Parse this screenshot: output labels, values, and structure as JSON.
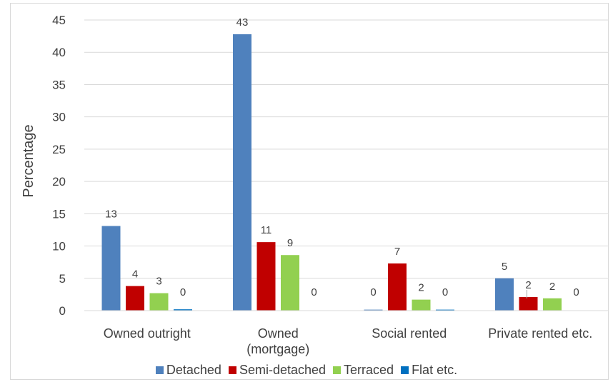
{
  "chart_data": {
    "type": "bar",
    "title": "",
    "xlabel": "",
    "ylabel": "Percentage",
    "ylim": [
      0,
      45
    ],
    "yticks": [
      0,
      5,
      10,
      15,
      20,
      25,
      30,
      35,
      40,
      45
    ],
    "grid": true,
    "legend_position": "bottom",
    "categories": [
      [
        "Owned outright"
      ],
      [
        "Owned",
        "(mortgage)"
      ],
      [
        "Social rented"
      ],
      [
        "Private rented etc."
      ]
    ],
    "series": [
      {
        "name": "Detached",
        "color": "#4f81bd",
        "values": [
          13.1,
          42.8,
          0.15,
          5.0
        ],
        "labels": [
          "13",
          "43",
          "0",
          "5"
        ]
      },
      {
        "name": "Semi-detached",
        "color": "#c00000",
        "values": [
          3.8,
          10.6,
          7.3,
          2.1
        ],
        "labels": [
          "4",
          "11",
          "7",
          "2"
        ]
      },
      {
        "name": "Terraced",
        "color": "#92d050",
        "values": [
          2.7,
          8.6,
          1.7,
          1.9
        ],
        "labels": [
          "3",
          "9",
          "2",
          "2"
        ]
      },
      {
        "name": "Flat etc.",
        "color": "#0070c0",
        "values": [
          0.2,
          0.0,
          0.15,
          0.0
        ],
        "labels": [
          "0",
          "0",
          "0",
          "0"
        ]
      }
    ]
  }
}
